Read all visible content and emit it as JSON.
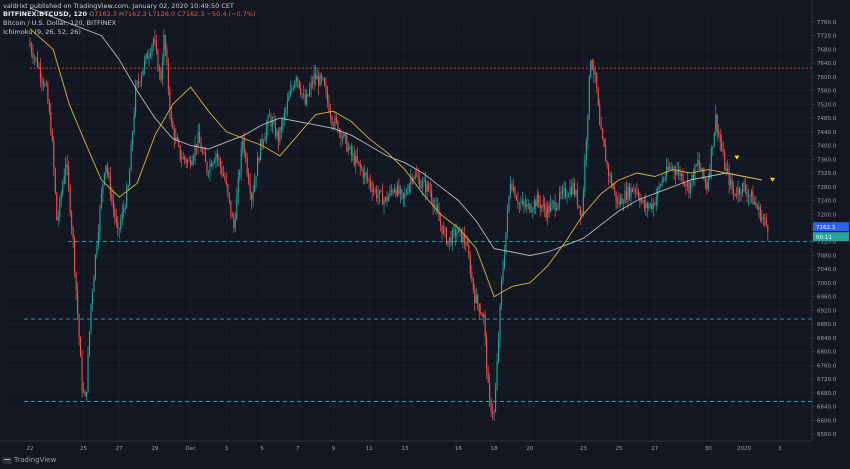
{
  "header": {
    "publisher_line": "valdrixt published on TradingView.com, January 02, 2020 10:49:50 CET",
    "symbol_line": "BITFINEX:BTCUSD, 120",
    "ohlc": {
      "o_label": "O",
      "o_value": "7162.3",
      "h_label": "H",
      "h_value": "7162.3",
      "l_label": "L",
      "l_value": "7126.0",
      "c_label": "C",
      "c_value": "7162.3",
      "change": "−50.4 (−0.7%)"
    },
    "series_title": "Bitcoin / U.S. Dollar, 120, BITFINEX",
    "indicator_label": "Ichimoku (9, 26, 52, 26)"
  },
  "footer": {
    "brand": "TradingView"
  },
  "colors": {
    "background": "#131722",
    "up": "#26a69a",
    "down": "#ef5350",
    "tenkan": "#d4b430",
    "kijun": "#d1d4dc",
    "red_level": "#e53935",
    "green_level": "#26a69a",
    "marker": "#f5e50a",
    "price_tag": "#2962ff",
    "countdown_tag": "#26a69a"
  },
  "price_tag": "7162.3",
  "countdown_tag": "00:11",
  "chart_data": {
    "type": "candlestick",
    "instrument": "Bitcoin / U.S. Dollar",
    "exchange": "BITFINEX",
    "interval": "120",
    "ylim": [
      6540,
      7780
    ],
    "y_ticks": [
      6560,
      6600,
      6640,
      6680,
      6720,
      6760,
      6800,
      6840,
      6880,
      6920,
      6960,
      7000,
      7040,
      7080,
      7120,
      7160,
      7200,
      7240,
      7280,
      7320,
      7360,
      7400,
      7440,
      7480,
      7520,
      7560,
      7600,
      7640,
      7680,
      7720,
      7760
    ],
    "y_tick_labels": [
      "6560.0",
      "6600.0",
      "6640.0",
      "6680.0",
      "6720.0",
      "6760.0",
      "6800.0",
      "6840.0",
      "6880.0",
      "6920.0",
      "6960.0",
      "7000.0",
      "7040.0",
      "7080.0",
      "7120.0",
      "7160.0",
      "7200.0",
      "7240.0",
      "7280.0",
      "7320.0",
      "7360.0",
      "7400.0",
      "7440.0",
      "7480.0",
      "7520.0",
      "7560.0",
      "7600.0",
      "7640.0",
      "7680.0",
      "7720.0",
      "7760.0"
    ],
    "x_tick_labels": [
      "22",
      "25",
      "27",
      "29",
      "Dec",
      "3",
      "5",
      "7",
      "9",
      "11",
      "13",
      "16",
      "18",
      "20",
      "23",
      "25",
      "27",
      "30",
      "2020",
      "3"
    ],
    "x_tick_index": [
      0,
      3,
      5,
      7,
      9,
      11,
      13,
      15,
      17,
      19,
      21,
      24,
      26,
      28,
      31,
      33,
      35,
      38,
      40,
      42
    ],
    "day_count": 42,
    "price_path": [
      [
        0,
        7700
      ],
      [
        0.5,
        7640
      ],
      [
        1,
        7560
      ],
      [
        1.3,
        7430
      ],
      [
        1.6,
        7170
      ],
      [
        2.1,
        7360
      ],
      [
        2.5,
        7120
      ],
      [
        3,
        6700
      ],
      [
        3.2,
        6650
      ],
      [
        3.5,
        6940
      ],
      [
        3.9,
        7160
      ],
      [
        4.3,
        7360
      ],
      [
        5,
        7140
      ],
      [
        5.6,
        7280
      ],
      [
        6,
        7560
      ],
      [
        6.5,
        7640
      ],
      [
        7,
        7710
      ],
      [
        7.4,
        7590
      ],
      [
        7.6,
        7720
      ],
      [
        8,
        7460
      ],
      [
        8.5,
        7370
      ],
      [
        9,
        7350
      ],
      [
        9.5,
        7420
      ],
      [
        10,
        7330
      ],
      [
        10.5,
        7380
      ],
      [
        11,
        7300
      ],
      [
        11.5,
        7160
      ],
      [
        12,
        7420
      ],
      [
        12.5,
        7250
      ],
      [
        13,
        7400
      ],
      [
        13.5,
        7480
      ],
      [
        14,
        7420
      ],
      [
        14.5,
        7520
      ],
      [
        15,
        7610
      ],
      [
        15.5,
        7520
      ],
      [
        16,
        7600
      ],
      [
        16.5,
        7580
      ],
      [
        17,
        7480
      ],
      [
        17.5,
        7440
      ],
      [
        18,
        7380
      ],
      [
        18.5,
        7340
      ],
      [
        19,
        7300
      ],
      [
        19.5,
        7260
      ],
      [
        20,
        7240
      ],
      [
        20.5,
        7280
      ],
      [
        21,
        7240
      ],
      [
        21.5,
        7320
      ],
      [
        22,
        7290
      ],
      [
        22.5,
        7270
      ],
      [
        23,
        7180
      ],
      [
        23.5,
        7120
      ],
      [
        24,
        7150
      ],
      [
        24.5,
        7120
      ],
      [
        25,
        6960
      ],
      [
        25.5,
        6900
      ],
      [
        25.8,
        6650
      ],
      [
        26.1,
        6620
      ],
      [
        26.5,
        7000
      ],
      [
        27,
        7300
      ],
      [
        27.5,
        7230
      ],
      [
        28,
        7220
      ],
      [
        28.5,
        7240
      ],
      [
        29,
        7210
      ],
      [
        29.5,
        7230
      ],
      [
        30,
        7260
      ],
      [
        30.5,
        7280
      ],
      [
        31,
        7200
      ],
      [
        31.5,
        7660
      ],
      [
        31.8,
        7580
      ],
      [
        32,
        7450
      ],
      [
        32.5,
        7320
      ],
      [
        33,
        7230
      ],
      [
        33.5,
        7260
      ],
      [
        34,
        7280
      ],
      [
        34.5,
        7220
      ],
      [
        35,
        7230
      ],
      [
        35.5,
        7300
      ],
      [
        36,
        7340
      ],
      [
        36.5,
        7320
      ],
      [
        37,
        7280
      ],
      [
        37.5,
        7350
      ],
      [
        38,
        7280
      ],
      [
        38.5,
        7480
      ],
      [
        39,
        7340
      ],
      [
        39.5,
        7260
      ],
      [
        40,
        7280
      ],
      [
        40.5,
        7250
      ],
      [
        41,
        7200
      ],
      [
        41.4,
        7162
      ]
    ],
    "ichimoku": {
      "params": [
        9,
        26,
        52,
        26
      ],
      "tenkan_sen": [
        [
          0,
          7740
        ],
        [
          1.3,
          7680
        ],
        [
          2.2,
          7520
        ],
        [
          3,
          7420
        ],
        [
          4,
          7300
        ],
        [
          5,
          7250
        ],
        [
          6,
          7290
        ],
        [
          7,
          7430
        ],
        [
          8,
          7520
        ],
        [
          9,
          7570
        ],
        [
          10,
          7500
        ],
        [
          11,
          7440
        ],
        [
          12,
          7420
        ],
        [
          13,
          7400
        ],
        [
          14,
          7370
        ],
        [
          15,
          7430
        ],
        [
          16,
          7490
        ],
        [
          17,
          7500
        ],
        [
          18,
          7470
        ],
        [
          19,
          7420
        ],
        [
          20,
          7380
        ],
        [
          21,
          7330
        ],
        [
          22,
          7260
        ],
        [
          23,
          7200
        ],
        [
          24,
          7160
        ],
        [
          25,
          7100
        ],
        [
          26,
          6960
        ],
        [
          27,
          6990
        ],
        [
          28,
          7000
        ],
        [
          29,
          7050
        ],
        [
          30,
          7120
        ],
        [
          31,
          7200
        ],
        [
          32,
          7260
        ],
        [
          33,
          7300
        ],
        [
          34,
          7320
        ],
        [
          35,
          7310
        ],
        [
          36,
          7330
        ],
        [
          37,
          7320
        ],
        [
          38,
          7330
        ],
        [
          39,
          7320
        ],
        [
          40,
          7310
        ],
        [
          41,
          7300
        ]
      ],
      "kijun_sen": [
        [
          0,
          7800
        ],
        [
          2,
          7760
        ],
        [
          4,
          7720
        ],
        [
          5,
          7650
        ],
        [
          6,
          7560
        ],
        [
          7,
          7480
        ],
        [
          8,
          7420
        ],
        [
          9,
          7400
        ],
        [
          10,
          7390
        ],
        [
          11,
          7410
        ],
        [
          12,
          7430
        ],
        [
          13,
          7460
        ],
        [
          14,
          7480
        ],
        [
          15,
          7470
        ],
        [
          16,
          7460
        ],
        [
          17,
          7450
        ],
        [
          18,
          7430
        ],
        [
          19,
          7400
        ],
        [
          20,
          7370
        ],
        [
          21,
          7350
        ],
        [
          22,
          7320
        ],
        [
          23,
          7280
        ],
        [
          24,
          7240
        ],
        [
          25,
          7180
        ],
        [
          26,
          7100
        ],
        [
          27,
          7090
        ],
        [
          28,
          7080
        ],
        [
          29,
          7090
        ],
        [
          30,
          7110
        ],
        [
          31,
          7130
        ],
        [
          32,
          7170
        ],
        [
          33,
          7210
        ],
        [
          34,
          7240
        ],
        [
          35,
          7260
        ],
        [
          36,
          7280
        ],
        [
          37,
          7300
        ],
        [
          38,
          7310
        ],
        [
          39,
          7320
        ],
        [
          40,
          7310
        ],
        [
          41,
          7300
        ]
      ]
    },
    "levels": [
      {
        "price": 7625,
        "style": "red-dotted"
      },
      {
        "price": 7121,
        "style": "green-dashed"
      },
      {
        "price": 6895,
        "style": "green-dashed"
      },
      {
        "price": 6655,
        "style": "green-dashed"
      }
    ],
    "markers": [
      {
        "x": 39.6,
        "price": 7365,
        "shape": "triangle-down"
      },
      {
        "x": 41.6,
        "price": 7300,
        "shape": "triangle-down"
      }
    ],
    "last_price": 7162.3,
    "grid": true,
    "legend": "top-left"
  }
}
